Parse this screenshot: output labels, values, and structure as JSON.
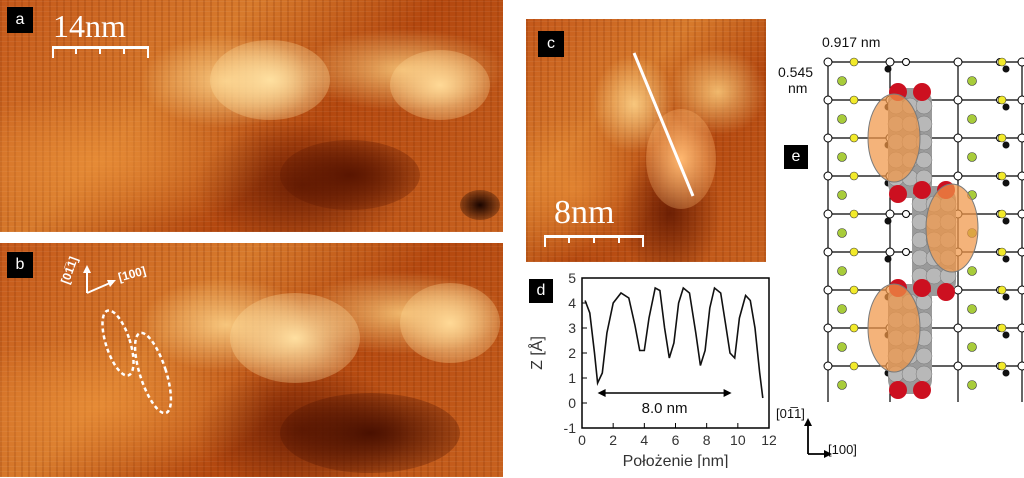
{
  "panels": {
    "a": {
      "label": "a",
      "scale": "14nm"
    },
    "b": {
      "label": "b",
      "dir1": "[01̅1]",
      "dir2": "[100]"
    },
    "c": {
      "label": "c",
      "scale": "8nm"
    },
    "d": {
      "label": "d",
      "annotation": "8.0 nm"
    },
    "e": {
      "label": "e",
      "width_label": "0.917 nm",
      "height_label_1": "0.545",
      "height_label_2": "nm",
      "dir_v": "[01̅1]",
      "dir_h": "[100]"
    }
  },
  "chart_data": {
    "type": "line",
    "xlabel": "Położenie [nm]",
    "ylabel": "Z [Å]",
    "xlim": [
      0,
      12
    ],
    "ylim": [
      -1,
      5
    ],
    "xticks": [
      0,
      2,
      4,
      6,
      8,
      10,
      12
    ],
    "yticks": [
      -1,
      0,
      1,
      2,
      3,
      4,
      5
    ],
    "series": [
      {
        "x": [
          0.2,
          0.5,
          0.8,
          1.0,
          1.3,
          1.6,
          2.0,
          2.5,
          3.0,
          3.4,
          3.7,
          4.0,
          4.3,
          4.7,
          5.0,
          5.3,
          5.6,
          5.9,
          6.2,
          6.5,
          6.9,
          7.3,
          7.6,
          7.9,
          8.2,
          8.5,
          8.9,
          9.2,
          9.5,
          9.8,
          10.1,
          10.5,
          10.8,
          11.1,
          11.4,
          11.6
        ],
        "y": [
          4.1,
          3.6,
          2.0,
          0.8,
          1.2,
          2.8,
          4.0,
          4.4,
          4.2,
          3.1,
          2.1,
          2.1,
          3.4,
          4.6,
          4.5,
          3.0,
          1.8,
          2.4,
          4.0,
          4.6,
          4.4,
          2.8,
          1.5,
          2.1,
          3.8,
          4.6,
          4.4,
          3.2,
          2.0,
          1.8,
          3.4,
          4.3,
          4.1,
          3.0,
          1.2,
          0.2
        ]
      }
    ]
  }
}
